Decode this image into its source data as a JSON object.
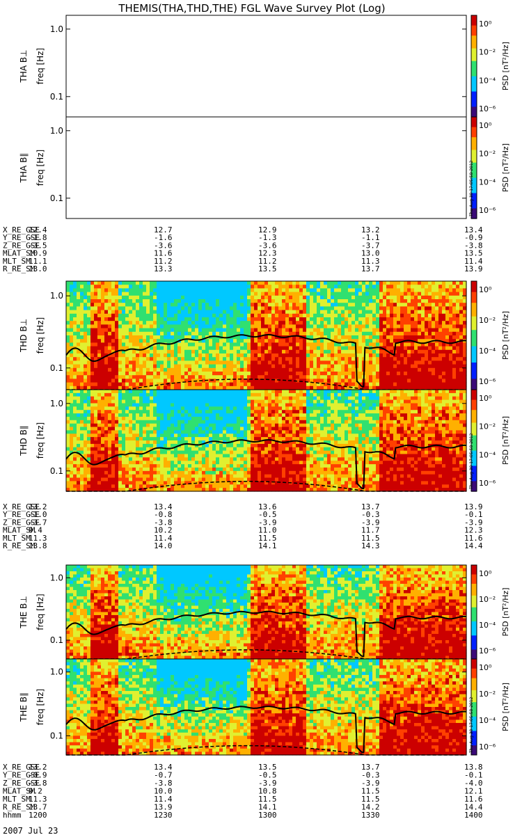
{
  "title": "THEMIS(THA,THD,THE) FGL Wave Survey Plot (Log)",
  "chart_data": {
    "type": "heatmap",
    "panel_ylabel_suffix": "freq [Hz]",
    "y_scale": "log",
    "y_ticks": [
      "0.1",
      "1.0"
    ],
    "colorbar": {
      "label": "PSD [nT²/Hz]",
      "scale": "log",
      "ticks": [
        "10⁰",
        "10⁻²",
        "10⁻⁴",
        "10⁻⁶"
      ]
    },
    "stamp": "Thu Aug 30 17:05:58 2012",
    "panels": [
      {
        "probe": "THA",
        "label": "THA B⊥",
        "ylim": [
          0.05,
          1.6
        ],
        "data": "none"
      },
      {
        "probe": "THA",
        "label": "THA B∥",
        "ylim": [
          0.05,
          1.6
        ],
        "data": "none"
      },
      {
        "probe": "THD",
        "label": "THD B⊥",
        "ylim": [
          0.05,
          1.6
        ],
        "data": "spectrogram",
        "solid_line_hz_approx": [
          0.15,
          0.28
        ],
        "dashed_line_hz_approx": [
          0.05,
          0.07
        ]
      },
      {
        "probe": "THD",
        "label": "THD B∥",
        "ylim": [
          0.05,
          1.6
        ],
        "data": "spectrogram",
        "solid_line_hz_approx": [
          0.15,
          0.28
        ],
        "dashed_line_hz_approx": [
          0.05,
          0.07
        ]
      },
      {
        "probe": "THE",
        "label": "THE B⊥",
        "ylim": [
          0.05,
          1.6
        ],
        "data": "spectrogram",
        "solid_line_hz_approx": [
          0.15,
          0.28
        ],
        "dashed_line_hz_approx": [
          0.05,
          0.07
        ]
      },
      {
        "probe": "THE",
        "label": "THE B∥",
        "ylim": [
          0.05,
          1.6
        ],
        "data": "spectrogram",
        "solid_line_hz_approx": [
          0.15,
          0.28
        ],
        "dashed_line_hz_approx": [
          0.05,
          0.07
        ]
      }
    ],
    "ephemeris": [
      {
        "probe": "THA",
        "rows": [
          {
            "name": "X_RE_GSE",
            "values": [
              "12.4",
              "12.7",
              "12.9",
              "13.2",
              "13.4"
            ]
          },
          {
            "name": "Y_RE_GSE",
            "values": [
              "-1.8",
              "-1.6",
              "-1.3",
              "-1.1",
              "-0.9"
            ]
          },
          {
            "name": "Z_RE_GSE",
            "values": [
              "-3.5",
              "-3.6",
              "-3.6",
              "-3.7",
              "-3.8"
            ]
          },
          {
            "name": "MLAT_SM",
            "values": [
              "10.9",
              "11.6",
              "12.3",
              "13.0",
              "13.5"
            ]
          },
          {
            "name": "MLT_SM",
            "values": [
              "11.1",
              "11.2",
              "11.2",
              "11.3",
              "11.4"
            ]
          },
          {
            "name": "R_RE_SM",
            "values": [
              "13.0",
              "13.3",
              "13.5",
              "13.7",
              "13.9"
            ]
          }
        ]
      },
      {
        "probe": "THD",
        "rows": [
          {
            "name": "X_RE_GSE",
            "values": [
              "13.2",
              "13.4",
              "13.6",
              "13.7",
              "13.9"
            ]
          },
          {
            "name": "Y_RE_GSE",
            "values": [
              "-1.0",
              "-0.8",
              "-0.5",
              "-0.3",
              "-0.1"
            ]
          },
          {
            "name": "Z_RE_GSE",
            "values": [
              "-3.7",
              "-3.8",
              "-3.9",
              "-3.9",
              "-3.9"
            ]
          },
          {
            "name": "MLAT_SM",
            "values": [
              "9.4",
              "10.2",
              "11.0",
              "11.7",
              "12.3"
            ]
          },
          {
            "name": "MLT_SM",
            "values": [
              "11.3",
              "11.4",
              "11.5",
              "11.5",
              "11.6"
            ]
          },
          {
            "name": "R_RE_SM",
            "values": [
              "13.8",
              "14.0",
              "14.1",
              "14.3",
              "14.4"
            ]
          }
        ]
      },
      {
        "probe": "THE",
        "rows": [
          {
            "name": "X_RE_GSE",
            "values": [
              "13.2",
              "13.4",
              "13.5",
              "13.7",
              "13.8"
            ]
          },
          {
            "name": "Y_RE_GSE",
            "values": [
              "-0.9",
              "-0.7",
              "-0.5",
              "-0.3",
              "-0.1"
            ]
          },
          {
            "name": "Z_RE_GSE",
            "values": [
              "-3.8",
              "-3.8",
              "-3.9",
              "-3.9",
              "-4.0"
            ]
          },
          {
            "name": "MLAT_SM",
            "values": [
              "9.2",
              "10.0",
              "10.8",
              "11.5",
              "12.1"
            ]
          },
          {
            "name": "MLT_SM",
            "values": [
              "11.3",
              "11.4",
              "11.5",
              "11.5",
              "11.6"
            ]
          },
          {
            "name": "R_RE_SM",
            "values": [
              "13.7",
              "13.9",
              "14.1",
              "14.2",
              "14.4"
            ]
          },
          {
            "name": "hhmm",
            "values": [
              "1200",
              "1230",
              "1300",
              "1330",
              "1400"
            ]
          }
        ]
      }
    ],
    "date": "2007 Jul 23"
  }
}
